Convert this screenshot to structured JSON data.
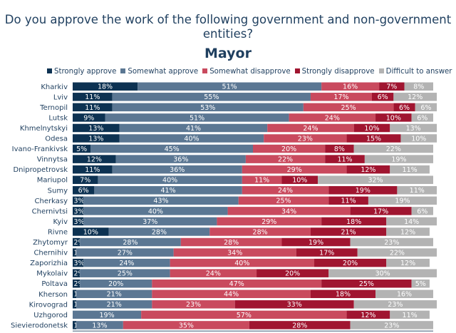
{
  "chart_data": {
    "type": "bar",
    "orientation": "horizontal",
    "stacked": true,
    "title": "Do you approve the work of the following government and non-government entities?",
    "subtitle": "Mayor",
    "legend_position": "top",
    "xlim": [
      0,
      100
    ],
    "x_ticks": [
      "0%",
      "10%",
      "20%",
      "30%",
      "40%",
      "50%",
      "60%",
      "70%",
      "80%",
      "90%",
      "100%"
    ],
    "categories": [
      "Kharkiv",
      "Lviv",
      "Ternopil",
      "Lutsk",
      "Khmelnytskyi",
      "Odesa",
      "Ivano-Frankivsk",
      "Vinnytsa",
      "Dnipropetrovsk",
      "Mariupol",
      "Sumy",
      "Cherkasy",
      "Chernivtsi",
      "Kyiv",
      "Rivne",
      "Zhytomyr",
      "Chernihiv",
      "Zaporizhia",
      "Mykolaiv",
      "Poltava",
      "Kherson",
      "Kirovograd",
      "Uzhgorod",
      "Sievierodonetsk"
    ],
    "series": [
      {
        "name": "Strongly approve",
        "color": "#0d3252",
        "values": [
          18,
          11,
          11,
          9,
          13,
          13,
          5,
          12,
          11,
          7,
          6,
          3,
          3,
          3,
          10,
          2,
          1,
          3,
          2,
          2,
          1,
          1,
          0,
          1
        ],
        "labels": [
          "18%",
          "11%",
          "11%",
          "9%",
          "13%",
          "13%",
          "5%",
          "12%",
          "11%",
          "7%",
          "6%",
          "3%",
          "3%",
          "3%",
          "10%",
          "2%",
          "1%",
          "3%",
          "2%",
          "2%",
          "1%",
          "1%",
          "",
          "1%"
        ]
      },
      {
        "name": "Somewhat approve",
        "color": "#5b7793",
        "values": [
          51,
          55,
          53,
          51,
          41,
          40,
          45,
          36,
          36,
          40,
          41,
          43,
          40,
          37,
          28,
          28,
          27,
          24,
          25,
          20,
          21,
          21,
          19,
          13
        ],
        "labels": [
          "51%",
          "55%",
          "53%",
          "51%",
          "41%",
          "40%",
          "45%",
          "36%",
          "36%",
          "40%",
          "41%",
          "43%",
          "40%",
          "37%",
          "28%",
          "28%",
          "27%",
          "24%",
          "25%",
          "20%",
          "21%",
          "21%",
          "19%",
          "13%"
        ]
      },
      {
        "name": "Somewhat disapprove",
        "color": "#c94a5e",
        "values": [
          16,
          17,
          25,
          24,
          24,
          23,
          20,
          22,
          29,
          11,
          24,
          25,
          34,
          29,
          28,
          28,
          34,
          40,
          24,
          47,
          44,
          23,
          57,
          35
        ],
        "labels": [
          "16%",
          "17%",
          "25%",
          "24%",
          "24%",
          "23%",
          "20%",
          "22%",
          "29%",
          "11%",
          "24%",
          "25%",
          "34%",
          "29%",
          "28%",
          "28%",
          "34%",
          "40%",
          "24%",
          "47%",
          "44%",
          "23%",
          "57%",
          "35%"
        ]
      },
      {
        "name": "Strongly disapprove",
        "color": "#a01530",
        "values": [
          7,
          6,
          6,
          10,
          10,
          15,
          8,
          11,
          12,
          10,
          19,
          11,
          17,
          18,
          21,
          19,
          17,
          20,
          20,
          25,
          18,
          33,
          12,
          28
        ],
        "labels": [
          "7%",
          "6%",
          "6%",
          "10%",
          "10%",
          "15%",
          "8%",
          "11%",
          "12%",
          "10%",
          "19%",
          "11%",
          "17%",
          "18%",
          "21%",
          "19%",
          "17%",
          "20%",
          "20%",
          "25%",
          "18%",
          "33%",
          "12%",
          "28%"
        ]
      },
      {
        "name": "Difficult to answer",
        "color": "#b3b3b3",
        "values": [
          8,
          12,
          6,
          6,
          13,
          10,
          22,
          19,
          11,
          32,
          11,
          19,
          6,
          14,
          12,
          23,
          22,
          12,
          30,
          5,
          16,
          23,
          11,
          23
        ],
        "labels": [
          "8%",
          "12%",
          "6%",
          "6%",
          "13%",
          "10%",
          "22%",
          "19%",
          "11%",
          "32%",
          "11%",
          "19%",
          "6%",
          "14%",
          "12%",
          "23%",
          "22%",
          "12%",
          "30%",
          "5%",
          "16%",
          "23%",
          "11%",
          "23%"
        ]
      }
    ]
  }
}
